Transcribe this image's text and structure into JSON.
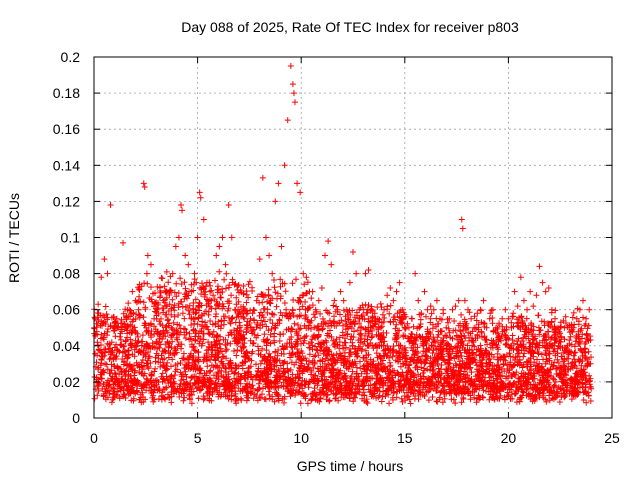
{
  "chart_data": {
    "type": "scatter",
    "title": "Day 088 of 2025, Rate Of TEC Index for receiver p803",
    "xlabel": "GPS time / hours",
    "ylabel": "ROTI / TECUs",
    "xlim": [
      0,
      25
    ],
    "ylim": [
      0,
      0.2
    ],
    "x_ticks": [
      "0",
      "5",
      "10",
      "15",
      "20",
      "25"
    ],
    "y_ticks": [
      "0",
      "0.02",
      "0.04",
      "0.06",
      "0.08",
      "0.1",
      "0.12",
      "0.14",
      "0.16",
      "0.18",
      "0.2"
    ],
    "grid": true,
    "legend": "none",
    "marker": "+",
    "color": "#ff0000",
    "series": [
      {
        "x": [
          0.05,
          0.2,
          0.35,
          0.5,
          0.65,
          0.8,
          0.95,
          1.1,
          1.25,
          1.4,
          1.55,
          1.7,
          1.85,
          2.0,
          2.15,
          2.3,
          2.4,
          2.45,
          2.6,
          2.75,
          2.9,
          3.05,
          3.2,
          3.35,
          3.5,
          3.65,
          3.8,
          3.95,
          4.1,
          4.2,
          4.25,
          4.4,
          4.55,
          4.7,
          4.85,
          5.0,
          5.1,
          5.15,
          5.3,
          5.45,
          5.6,
          5.75,
          5.9,
          6.05,
          6.2,
          6.35,
          6.5,
          6.65,
          6.8,
          6.95,
          7.1,
          7.25,
          7.4,
          7.55,
          7.7,
          7.85,
          8.0,
          8.15,
          8.3,
          8.45,
          8.6,
          8.75,
          8.9,
          9.05,
          9.2,
          9.35,
          9.5,
          9.6,
          9.65,
          9.7,
          9.8,
          9.95,
          10.1,
          10.25,
          10.4,
          10.55,
          10.7,
          10.85,
          11.0,
          11.15,
          11.3,
          11.45,
          11.6,
          11.75,
          11.9,
          12.05,
          12.2,
          12.35,
          12.5,
          12.65,
          12.8,
          12.95,
          13.1,
          13.25,
          13.4,
          13.55,
          13.7,
          13.85,
          14.0,
          14.15,
          14.3,
          14.45,
          14.6,
          14.75,
          14.9,
          15.05,
          15.2,
          15.35,
          15.5,
          15.65,
          15.8,
          15.95,
          16.1,
          16.25,
          16.4,
          16.55,
          16.7,
          16.85,
          17.0,
          17.15,
          17.3,
          17.45,
          17.6,
          17.75,
          17.8,
          17.9,
          18.05,
          18.2,
          18.35,
          18.5,
          18.65,
          18.8,
          18.95,
          19.1,
          19.25,
          19.4,
          19.55,
          19.7,
          19.85,
          20.0,
          20.15,
          20.3,
          20.45,
          20.6,
          20.75,
          20.9,
          21.05,
          21.2,
          21.35,
          21.5,
          21.65,
          21.8,
          21.95,
          22.1,
          22.25,
          22.4,
          22.55,
          22.7,
          22.85,
          23.0,
          23.15,
          23.3,
          23.45,
          23.6,
          23.75,
          23.9
        ],
        "y": [
          0.055,
          0.063,
          0.078,
          0.088,
          0.08,
          0.118,
          0.05,
          0.055,
          0.045,
          0.097,
          0.05,
          0.06,
          0.07,
          0.065,
          0.06,
          0.073,
          0.13,
          0.128,
          0.09,
          0.085,
          0.055,
          0.06,
          0.052,
          0.065,
          0.07,
          0.07,
          0.08,
          0.095,
          0.1,
          0.118,
          0.115,
          0.09,
          0.085,
          0.07,
          0.08,
          0.1,
          0.125,
          0.122,
          0.11,
          0.075,
          0.07,
          0.068,
          0.09,
          0.095,
          0.1,
          0.085,
          0.118,
          0.1,
          0.06,
          0.06,
          0.058,
          0.055,
          0.05,
          0.055,
          0.06,
          0.065,
          0.088,
          0.133,
          0.1,
          0.09,
          0.08,
          0.12,
          0.13,
          0.095,
          0.14,
          0.165,
          0.195,
          0.185,
          0.18,
          0.175,
          0.13,
          0.125,
          0.08,
          0.078,
          0.07,
          0.07,
          0.06,
          0.065,
          0.072,
          0.09,
          0.098,
          0.085,
          0.065,
          0.06,
          0.07,
          0.065,
          0.06,
          0.075,
          0.092,
          0.08,
          0.06,
          0.055,
          0.08,
          0.082,
          0.06,
          0.058,
          0.055,
          0.05,
          0.06,
          0.068,
          0.072,
          0.065,
          0.07,
          0.075,
          0.06,
          0.05,
          0.05,
          0.055,
          0.08,
          0.065,
          0.058,
          0.07,
          0.06,
          0.062,
          0.06,
          0.065,
          0.055,
          0.06,
          0.05,
          0.055,
          0.06,
          0.062,
          0.065,
          0.11,
          0.105,
          0.065,
          0.06,
          0.055,
          0.05,
          0.058,
          0.06,
          0.065,
          0.05,
          0.055,
          0.06,
          0.05,
          0.045,
          0.055,
          0.06,
          0.055,
          0.05,
          0.07,
          0.062,
          0.078,
          0.065,
          0.06,
          0.07,
          0.062,
          0.068,
          0.084,
          0.075,
          0.07,
          0.072,
          0.06,
          0.055,
          0.05,
          0.045,
          0.05,
          0.04,
          0.045,
          0.05,
          0.055,
          0.06,
          0.065,
          0.055,
          0.06
        ]
      }
    ]
  }
}
